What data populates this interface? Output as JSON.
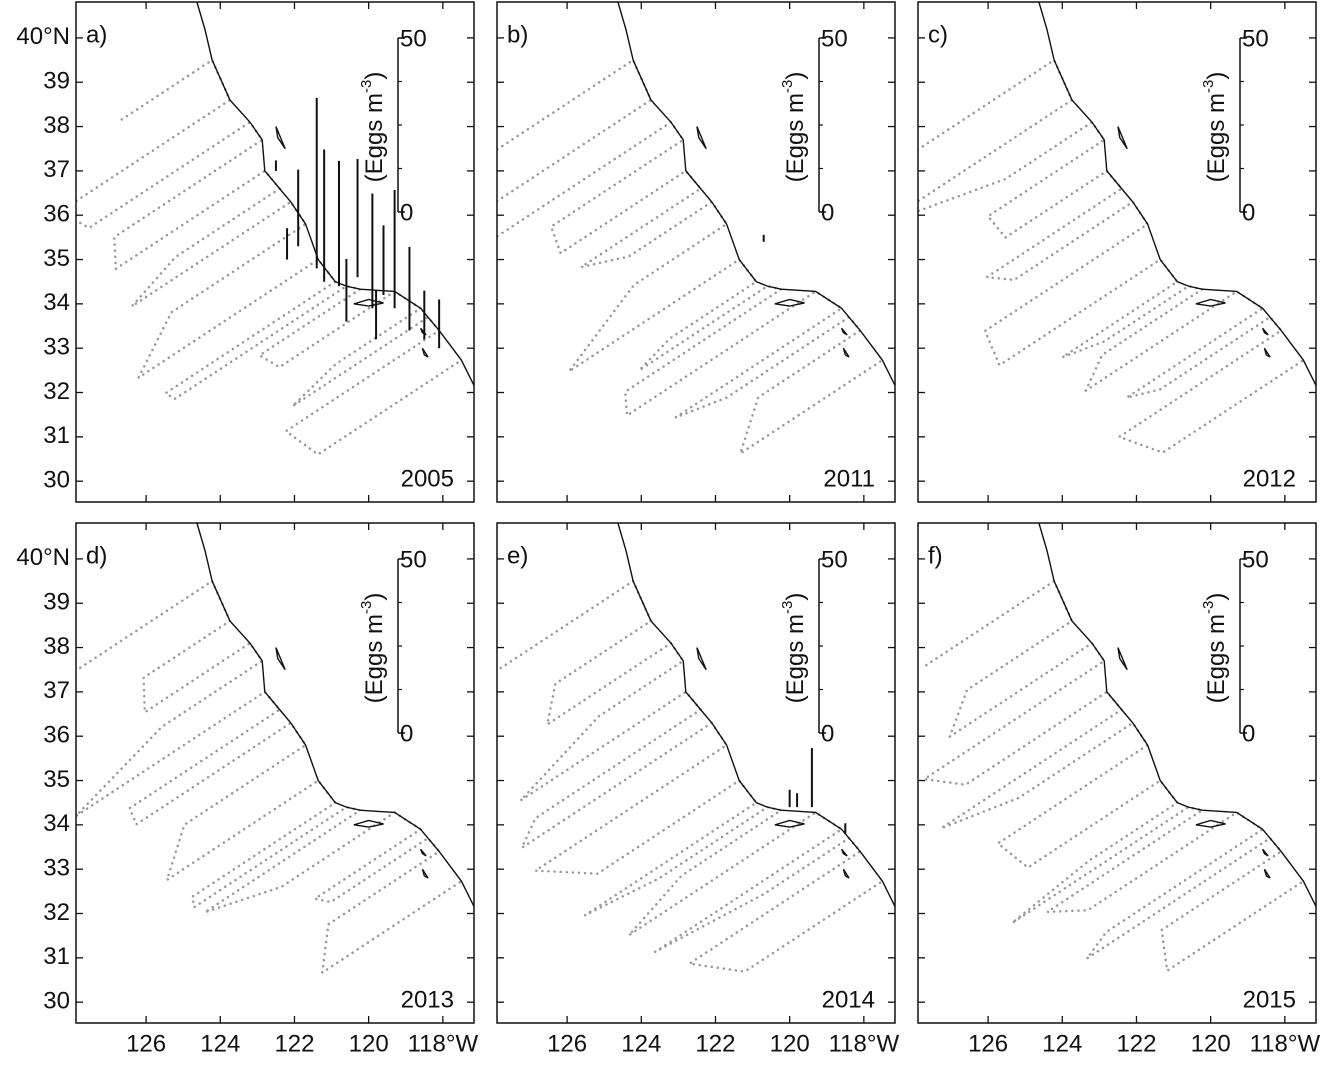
{
  "axes": {
    "xlim": [
      127.89,
      117.16
    ],
    "ylim": [
      29.53,
      40.81
    ],
    "xticks": [
      126,
      124,
      122,
      120,
      {
        "value": 118,
        "label": "118°W"
      }
    ],
    "yticks": [
      {
        "value": 40,
        "label": "40°N"
      },
      39,
      38,
      37,
      36,
      35,
      34,
      33,
      32,
      31,
      30
    ]
  },
  "chart_data": [
    {
      "type": "map",
      "label": "a)",
      "year": 2005,
      "ytick_labels": true,
      "xtick_labels": false,
      "scale": {
        "ticks": [
          0,
          50
        ],
        "label": "(Eggs m",
        "exponent": "-3",
        "close": ")"
      },
      "eggs": {
        "lon": [
          121.4,
          121.2,
          120.8,
          120.3,
          119.9,
          119.6,
          119.3,
          118.9,
          121.9,
          122.2,
          118.5,
          118.1,
          120.6,
          119.8,
          122.5
        ],
        "lat": [
          34.8,
          34.5,
          34.4,
          34.6,
          33.9,
          34.2,
          33.9,
          33.4,
          35.3,
          35.0,
          33.2,
          33.0,
          33.6,
          33.2,
          37.0
        ],
        "values": [
          49,
          38,
          36,
          34,
          33,
          20,
          34,
          24,
          22,
          9,
          14,
          14,
          18,
          14,
          3
        ]
      }
    },
    {
      "type": "map",
      "label": "b)",
      "year": 2011,
      "ytick_labels": false,
      "xtick_labels": false,
      "scale": {
        "ticks": [
          0,
          50
        ],
        "label": "(Eggs m",
        "exponent": "-3",
        "close": ")"
      },
      "eggs": {
        "lon": [
          120.7
        ],
        "lat": [
          35.4
        ],
        "values": [
          2
        ]
      }
    },
    {
      "type": "map",
      "label": "c)",
      "year": 2012,
      "ytick_labels": false,
      "xtick_labels": false,
      "scale": {
        "ticks": [
          0,
          50
        ],
        "label": "(Eggs m",
        "exponent": "-3",
        "close": ")"
      },
      "eggs": {
        "lon": [],
        "lat": [],
        "values": []
      }
    },
    {
      "type": "map",
      "label": "d)",
      "year": 2013,
      "ytick_labels": true,
      "xtick_labels": true,
      "scale": {
        "ticks": [
          0,
          50
        ],
        "label": "(Eggs m",
        "exponent": "-3",
        "close": ")"
      },
      "eggs": {
        "lon": [],
        "lat": [],
        "values": []
      }
    },
    {
      "type": "map",
      "label": "e)",
      "year": 2014,
      "ytick_labels": false,
      "xtick_labels": true,
      "scale": {
        "ticks": [
          0,
          50
        ],
        "label": "(Eggs m",
        "exponent": "-3",
        "close": ")"
      },
      "eggs": {
        "lon": [
          119.4,
          119.8,
          120.0,
          118.5
        ],
        "lat": [
          34.4,
          34.4,
          34.4,
          33.8
        ],
        "values": [
          17,
          4,
          5,
          3
        ]
      }
    },
    {
      "type": "map",
      "label": "f)",
      "year": 2015,
      "ytick_labels": false,
      "xtick_labels": true,
      "scale": {
        "ticks": [
          0,
          50
        ],
        "label": "(Eggs m",
        "exponent": "-3",
        "close": ")"
      },
      "eggs": {
        "lon": [],
        "lat": [],
        "values": []
      }
    }
  ]
}
